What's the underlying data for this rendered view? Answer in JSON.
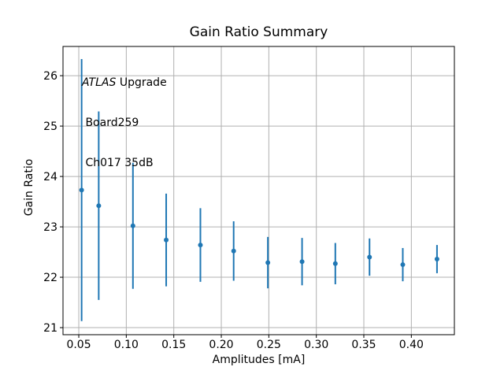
{
  "title": "Gain Ratio Summary",
  "annotation": {
    "line1_italic": "ATLAS",
    "line1_rest": " Upgrade",
    "line2": " Board259",
    "line3": " Ch017 35dB"
  },
  "chart_data": {
    "type": "scatter",
    "subtype": "errorbar-vertical-no-caps",
    "title": "Gain Ratio Summary",
    "xlabel": "Amplitudes [mA]",
    "ylabel": "Gain Ratio",
    "annotation_lines": [
      "ATLAS Upgrade",
      "Board259",
      "Ch017 35dB"
    ],
    "x": [
      0.053,
      0.071,
      0.107,
      0.142,
      0.178,
      0.213,
      0.249,
      0.285,
      0.32,
      0.356,
      0.391,
      0.427
    ],
    "y": [
      23.73,
      23.42,
      23.02,
      22.74,
      22.64,
      22.52,
      22.29,
      22.31,
      22.27,
      22.4,
      22.25,
      22.36
    ],
    "yerr": [
      2.6,
      1.87,
      1.25,
      0.92,
      0.73,
      0.59,
      0.51,
      0.47,
      0.41,
      0.37,
      0.33,
      0.28
    ],
    "xticks": [
      0.05,
      0.1,
      0.15,
      0.2,
      0.25,
      0.3,
      0.35,
      0.4
    ],
    "xtick_labels": [
      "0.05",
      "0.10",
      "0.15",
      "0.20",
      "0.25",
      "0.30",
      "0.35",
      "0.40"
    ],
    "yticks": [
      21,
      22,
      23,
      24,
      25,
      26
    ],
    "ytick_labels": [
      "21",
      "22",
      "23",
      "24",
      "25",
      "26"
    ],
    "xlim": [
      0.0334,
      0.4453
    ],
    "ylim": [
      20.86,
      26.58
    ],
    "grid": true,
    "legend": "none",
    "colors": {
      "series": "#1f77b4",
      "grid": "#b0b0b0",
      "axis": "#000000",
      "background": "#ffffff"
    }
  }
}
